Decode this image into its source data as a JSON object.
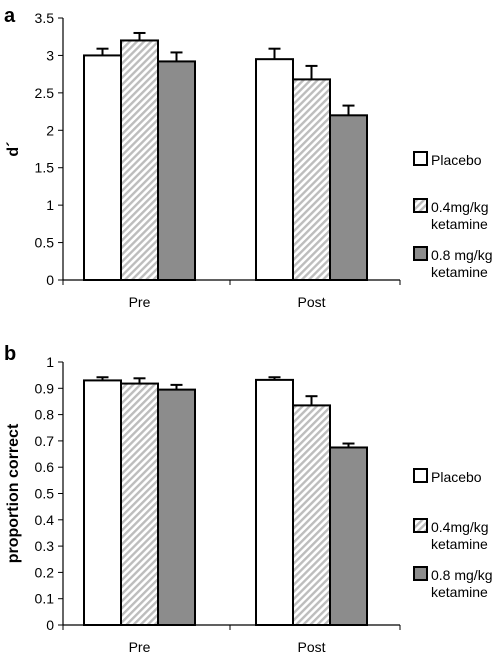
{
  "chart_data": [
    {
      "type": "bar",
      "panel_label": "a",
      "ylabel": "d´",
      "categories": [
        "Pre",
        "Post"
      ],
      "ylim": [
        0,
        3.5
      ],
      "yticks": [
        "0",
        "0.5",
        "1",
        "1.5",
        "2",
        "2.5",
        "3",
        "3.5"
      ],
      "series": [
        {
          "name": "Placebo",
          "values": [
            3.0,
            2.95
          ],
          "errors": [
            0.09,
            0.14
          ]
        },
        {
          "name": "0.4mg/kg ketamine",
          "values": [
            3.2,
            2.68
          ],
          "errors": [
            0.1,
            0.18
          ]
        },
        {
          "name": "0.8 mg/kg ketamine",
          "values": [
            2.92,
            2.2
          ],
          "errors": [
            0.12,
            0.13
          ]
        }
      ]
    },
    {
      "type": "bar",
      "panel_label": "b",
      "ylabel": "proportion correct",
      "categories": [
        "Pre",
        "Post"
      ],
      "ylim": [
        0,
        1
      ],
      "yticks": [
        "0",
        "0.1",
        "0.2",
        "0.3",
        "0.4",
        "0.5",
        "0.6",
        "0.7",
        "0.8",
        "0.9",
        "1"
      ],
      "series": [
        {
          "name": "Placebo",
          "values": [
            0.93,
            0.932
          ],
          "errors": [
            0.012,
            0.01
          ]
        },
        {
          "name": "0.4mg/kg ketamine",
          "values": [
            0.918,
            0.835
          ],
          "errors": [
            0.02,
            0.035
          ]
        },
        {
          "name": "0.8 mg/kg ketamine",
          "values": [
            0.895,
            0.675
          ],
          "errors": [
            0.018,
            0.015
          ]
        }
      ]
    }
  ],
  "legend": {
    "items": [
      {
        "lines": [
          "Placebo"
        ],
        "style": "white"
      },
      {
        "lines": [
          "0.4mg/kg",
          "ketamine"
        ],
        "style": "hatch"
      },
      {
        "lines": [
          "0.8 mg/kg",
          "ketamine"
        ],
        "style": "gray"
      }
    ]
  },
  "colors": {
    "placebo": "#ffffff",
    "low_dose_hatch": "#bdbdbd",
    "high_dose": "#8c8c8c",
    "axis": "#000000"
  }
}
